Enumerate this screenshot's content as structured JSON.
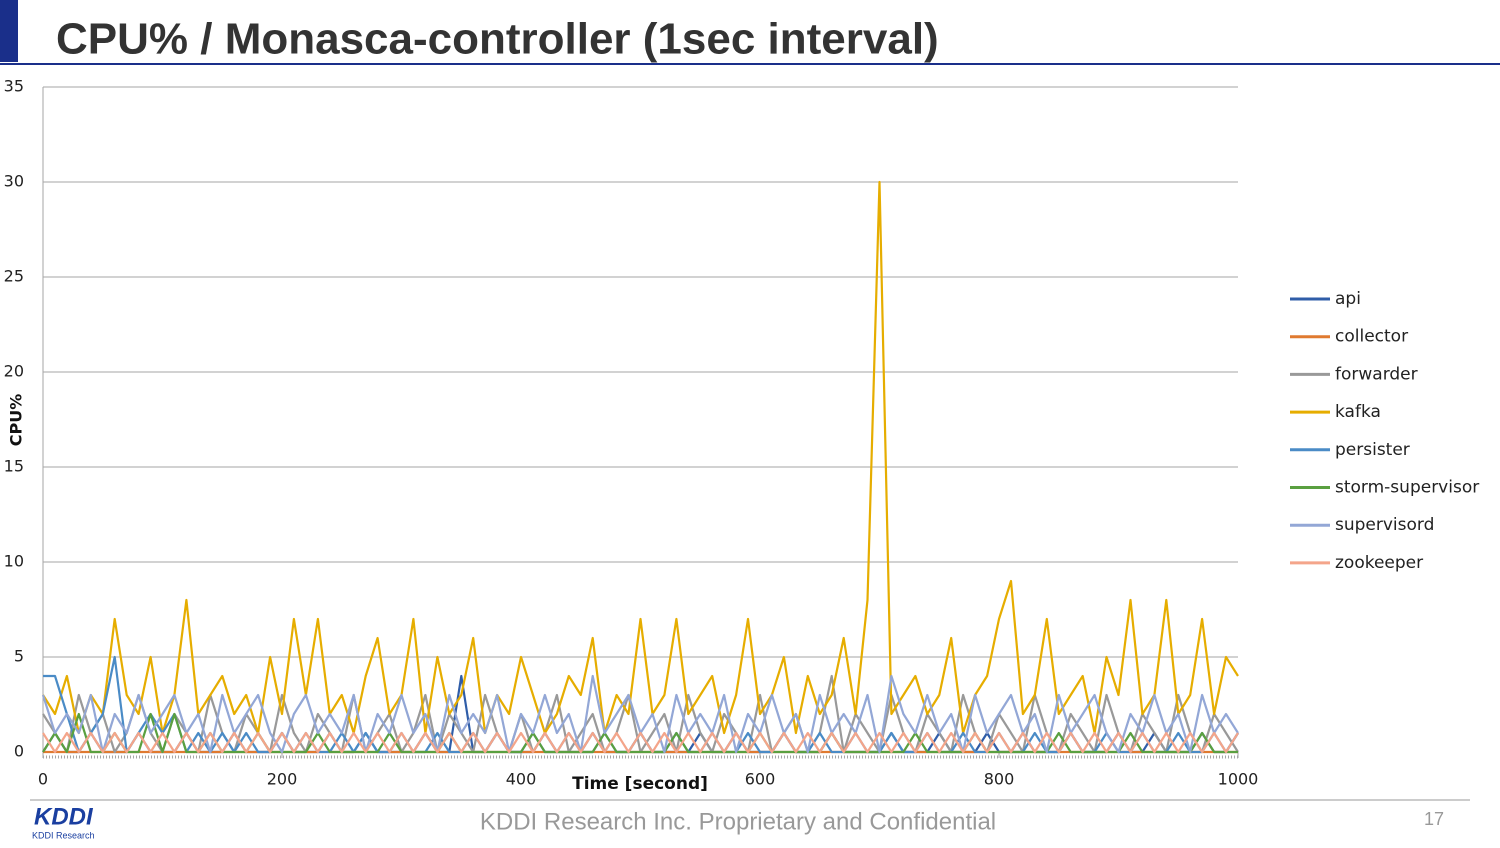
{
  "header": {
    "title": "CPU% / Monasca-controller (1sec interval)"
  },
  "chart_data": {
    "type": "line",
    "x_label": "Time [second]",
    "y_label": "CPU%",
    "x": [
      0,
      10,
      20,
      30,
      40,
      50,
      60,
      70,
      80,
      90,
      100,
      110,
      120,
      130,
      140,
      150,
      160,
      170,
      180,
      190,
      200,
      210,
      220,
      230,
      240,
      250,
      260,
      270,
      280,
      290,
      300,
      310,
      320,
      330,
      340,
      350,
      360,
      370,
      380,
      390,
      400,
      410,
      420,
      430,
      440,
      450,
      460,
      470,
      480,
      490,
      500,
      510,
      520,
      530,
      540,
      550,
      560,
      570,
      580,
      590,
      600,
      610,
      620,
      630,
      640,
      650,
      660,
      670,
      680,
      690,
      700,
      710,
      720,
      730,
      740,
      750,
      760,
      770,
      780,
      790,
      800,
      810,
      820,
      830,
      840,
      850,
      860,
      870,
      880,
      890,
      900,
      910,
      920,
      930,
      940,
      950,
      960,
      970,
      980,
      990,
      1000
    ],
    "series": [
      {
        "name": "api",
        "color": "#2f5da8",
        "values": [
          0,
          1,
          0,
          0,
          1,
          0,
          0,
          0,
          1,
          0,
          0,
          0,
          1,
          0,
          0,
          0,
          1,
          0,
          0,
          0,
          1,
          0,
          0,
          0,
          1,
          0,
          0,
          1,
          0,
          0,
          0,
          0,
          1,
          0,
          0,
          4,
          0,
          0,
          1,
          0,
          0,
          0,
          1,
          0,
          0,
          0,
          1,
          0,
          0,
          0,
          1,
          0,
          0,
          0,
          0,
          1,
          0,
          0,
          1,
          0,
          0,
          0,
          1,
          0,
          0,
          0,
          1,
          0,
          0,
          0,
          0,
          1,
          0,
          0,
          0,
          1,
          0,
          0,
          0,
          1,
          0,
          0,
          1,
          0,
          0,
          0,
          1,
          0,
          0,
          0,
          1,
          0,
          0,
          1,
          0,
          0,
          0,
          1,
          0,
          0,
          1
        ]
      },
      {
        "name": "collector",
        "color": "#e07a30",
        "values": [
          0,
          0,
          0,
          0,
          0,
          0,
          0,
          0,
          0,
          0,
          0,
          0,
          0,
          0,
          0,
          0,
          0,
          0,
          0,
          0,
          0,
          0,
          0,
          0,
          0,
          0,
          0,
          0,
          0,
          0,
          0,
          0,
          0,
          0,
          0,
          0,
          0,
          0,
          0,
          0,
          0,
          0,
          0,
          0,
          0,
          0,
          0,
          0,
          0,
          0,
          0,
          0,
          0,
          0,
          0,
          0,
          0,
          0,
          0,
          0,
          0,
          0,
          0,
          0,
          0,
          0,
          0,
          0,
          0,
          0,
          0,
          0,
          0,
          0,
          0,
          0,
          0,
          0,
          0,
          0,
          0,
          0,
          0,
          0,
          0,
          0,
          0,
          0,
          0,
          0,
          0,
          0,
          0,
          0,
          0,
          0,
          0,
          0,
          0,
          0,
          0
        ]
      },
      {
        "name": "forwarder",
        "color": "#999999",
        "values": [
          2,
          1,
          0,
          3,
          1,
          2,
          0,
          1,
          3,
          1,
          0,
          2,
          1,
          0,
          3,
          1,
          0,
          2,
          1,
          0,
          3,
          1,
          0,
          2,
          1,
          0,
          3,
          0,
          1,
          2,
          0,
          1,
          3,
          0,
          2,
          1,
          0,
          3,
          1,
          0,
          2,
          0,
          1,
          3,
          0,
          1,
          2,
          0,
          1,
          3,
          0,
          1,
          2,
          0,
          3,
          1,
          0,
          2,
          1,
          0,
          3,
          0,
          1,
          2,
          0,
          1,
          4,
          0,
          2,
          1,
          0,
          3,
          1,
          0,
          2,
          1,
          0,
          3,
          1,
          0,
          2,
          1,
          0,
          3,
          1,
          0,
          2,
          1,
          0,
          3,
          1,
          0,
          2,
          1,
          0,
          3,
          1,
          0,
          2,
          1,
          0
        ]
      },
      {
        "name": "kafka",
        "color": "#e6ad00",
        "values": [
          3,
          2,
          4,
          1,
          3,
          2,
          7,
          3,
          2,
          5,
          1,
          3,
          8,
          2,
          3,
          4,
          2,
          3,
          1,
          5,
          2,
          7,
          3,
          7,
          2,
          3,
          1,
          4,
          6,
          2,
          3,
          7,
          1,
          5,
          2,
          3,
          6,
          1,
          3,
          2,
          5,
          3,
          1,
          2,
          4,
          3,
          6,
          1,
          3,
          2,
          7,
          2,
          3,
          7,
          2,
          3,
          4,
          1,
          3,
          7,
          2,
          3,
          5,
          1,
          4,
          2,
          3,
          6,
          2,
          8,
          30,
          2,
          3,
          4,
          2,
          3,
          6,
          1,
          3,
          4,
          7,
          9,
          2,
          3,
          7,
          2,
          3,
          4,
          1,
          5,
          3,
          8,
          2,
          3,
          8,
          2,
          3,
          7,
          2,
          5,
          4
        ]
      },
      {
        "name": "persister",
        "color": "#4a8bc6",
        "values": [
          4,
          4,
          2,
          0,
          1,
          2,
          5,
          0,
          1,
          2,
          1,
          2,
          0,
          1,
          0,
          1,
          0,
          1,
          0,
          0,
          1,
          0,
          1,
          0,
          0,
          1,
          0,
          1,
          0,
          0,
          1,
          0,
          0,
          1,
          0,
          0,
          1,
          0,
          1,
          0,
          0,
          1,
          0,
          0,
          1,
          0,
          0,
          1,
          0,
          0,
          1,
          0,
          0,
          1,
          0,
          0,
          1,
          0,
          0,
          1,
          0,
          0,
          1,
          0,
          0,
          1,
          0,
          0,
          1,
          0,
          0,
          1,
          0,
          0,
          1,
          0,
          0,
          1,
          0,
          0,
          1,
          0,
          0,
          1,
          0,
          0,
          1,
          0,
          0,
          1,
          0,
          0,
          1,
          0,
          0,
          1,
          0,
          0,
          1,
          0,
          1
        ]
      },
      {
        "name": "storm-supervisor",
        "color": "#5aa040",
        "values": [
          0,
          1,
          0,
          2,
          0,
          0,
          1,
          0,
          0,
          2,
          0,
          2,
          0,
          0,
          1,
          0,
          0,
          0,
          1,
          0,
          0,
          0,
          0,
          1,
          0,
          0,
          0,
          0,
          0,
          1,
          0,
          0,
          0,
          0,
          1,
          0,
          0,
          0,
          0,
          0,
          0,
          1,
          0,
          0,
          0,
          0,
          0,
          1,
          0,
          0,
          0,
          0,
          0,
          1,
          0,
          0,
          0,
          0,
          0,
          0,
          1,
          0,
          0,
          0,
          0,
          0,
          1,
          0,
          0,
          0,
          0,
          0,
          0,
          1,
          0,
          0,
          0,
          0,
          1,
          0,
          0,
          0,
          0,
          0,
          0,
          1,
          0,
          0,
          0,
          0,
          0,
          1,
          0,
          0,
          0,
          0,
          0,
          1,
          0,
          0,
          0
        ]
      },
      {
        "name": "supervisord",
        "color": "#93a7d6",
        "values": [
          3,
          1,
          2,
          1,
          3,
          0,
          2,
          1,
          3,
          1,
          2,
          3,
          1,
          2,
          0,
          3,
          1,
          2,
          3,
          1,
          0,
          2,
          3,
          1,
          2,
          1,
          3,
          0,
          2,
          1,
          3,
          1,
          2,
          0,
          3,
          1,
          2,
          1,
          3,
          0,
          2,
          1,
          3,
          1,
          2,
          0,
          4,
          1,
          2,
          3,
          1,
          2,
          0,
          3,
          1,
          2,
          1,
          3,
          0,
          2,
          1,
          3,
          1,
          2,
          0,
          3,
          1,
          2,
          1,
          3,
          0,
          4,
          2,
          1,
          3,
          1,
          2,
          0,
          3,
          1,
          2,
          3,
          1,
          2,
          0,
          3,
          1,
          2,
          3,
          1,
          0,
          2,
          1,
          3,
          1,
          2,
          0,
          3,
          1,
          2,
          1
        ]
      },
      {
        "name": "zookeeper",
        "color": "#f4a58a",
        "values": [
          1,
          0,
          1,
          0,
          1,
          0,
          1,
          0,
          1,
          0,
          1,
          0,
          1,
          0,
          1,
          0,
          1,
          0,
          1,
          0,
          1,
          0,
          1,
          0,
          1,
          0,
          1,
          0,
          1,
          0,
          1,
          0,
          1,
          0,
          1,
          0,
          1,
          0,
          1,
          0,
          1,
          0,
          1,
          0,
          1,
          0,
          1,
          0,
          1,
          0,
          1,
          0,
          1,
          0,
          1,
          0,
          1,
          0,
          1,
          0,
          1,
          0,
          1,
          0,
          1,
          0,
          1,
          0,
          1,
          0,
          1,
          0,
          1,
          0,
          1,
          0,
          1,
          0,
          1,
          0,
          1,
          0,
          1,
          0,
          1,
          0,
          1,
          0,
          1,
          0,
          1,
          0,
          1,
          0,
          1,
          0,
          1,
          0,
          1,
          0,
          1
        ]
      }
    ],
    "xlim": [
      0,
      1000
    ],
    "xticks": [
      0,
      200,
      400,
      600,
      800,
      1000
    ],
    "ylim": [
      0,
      35
    ],
    "yticks": [
      0,
      5,
      10,
      15,
      20,
      25,
      30,
      35
    ],
    "grid": true,
    "legend": "right"
  },
  "footer": {
    "text": "KDDI Research Inc. Proprietary and Confidential",
    "page": "17",
    "logo": "KDDI",
    "logo_sub": "KDDI Research"
  }
}
